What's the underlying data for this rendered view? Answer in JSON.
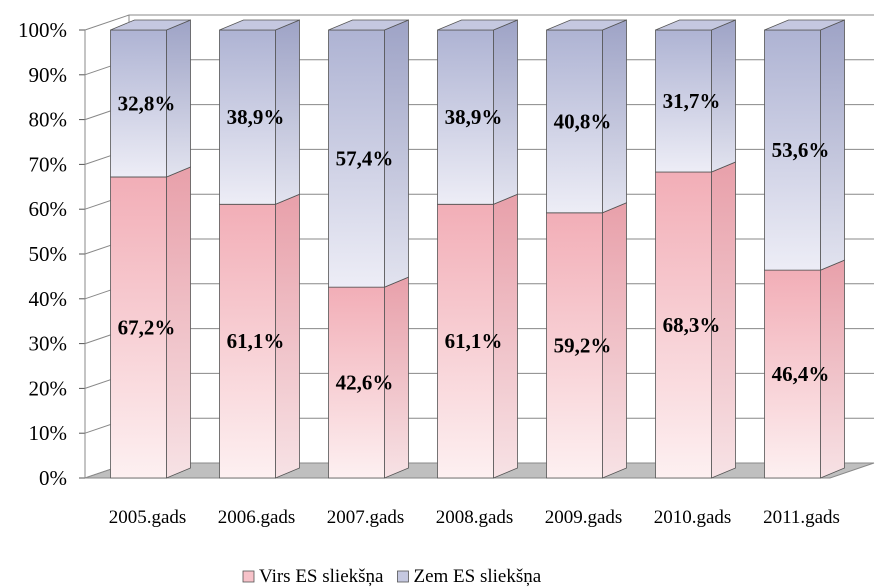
{
  "chart_data": {
    "type": "bar",
    "stacked": true,
    "percent_stacked": true,
    "three_d": true,
    "categories": [
      "2005.gads",
      "2006.gads",
      "2007.gads",
      "2008.gads",
      "2009.gads",
      "2010.gads",
      "2011.gads"
    ],
    "series": [
      {
        "name": "Virs ES sliekšņa",
        "values": [
          67.2,
          61.1,
          42.6,
          61.1,
          59.2,
          68.3,
          46.4
        ],
        "labels": [
          "67,2%",
          "61,1%",
          "42,6%",
          "61,1%",
          "59,2%",
          "68,3%",
          "46,4%"
        ],
        "color": "#f4b4bc"
      },
      {
        "name": "Zem ES sliekšņa",
        "values": [
          32.8,
          38.9,
          57.4,
          38.9,
          40.8,
          31.7,
          53.6
        ],
        "labels": [
          "32,8%",
          "38,9%",
          "57,4%",
          "38,9%",
          "40,8%",
          "31,7%",
          "53,6%"
        ],
        "color": "#b4b8d6"
      }
    ],
    "y_ticks": [
      "0%",
      "10%",
      "20%",
      "30%",
      "40%",
      "50%",
      "60%",
      "70%",
      "80%",
      "90%",
      "100%"
    ],
    "ylim": [
      0,
      100
    ],
    "grid": true,
    "legend_position": "bottom"
  }
}
